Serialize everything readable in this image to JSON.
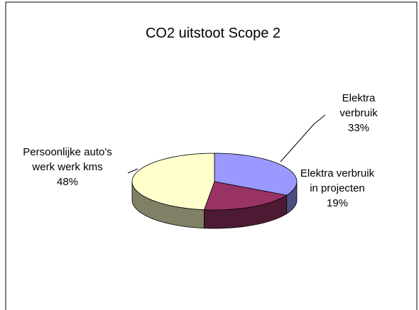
{
  "chart_data": {
    "type": "pie",
    "title": "CO2 uitstoot Scope 2",
    "categories": [
      "Elektra verbruik",
      "Elektra verbruik in projecten",
      "Persoonlijke auto's werk werk kms"
    ],
    "values": [
      33,
      19,
      48
    ],
    "value_labels": [
      "33%",
      "19%",
      "48%"
    ],
    "colors": [
      "#9999ff",
      "#993366",
      "#ffffcc"
    ]
  }
}
